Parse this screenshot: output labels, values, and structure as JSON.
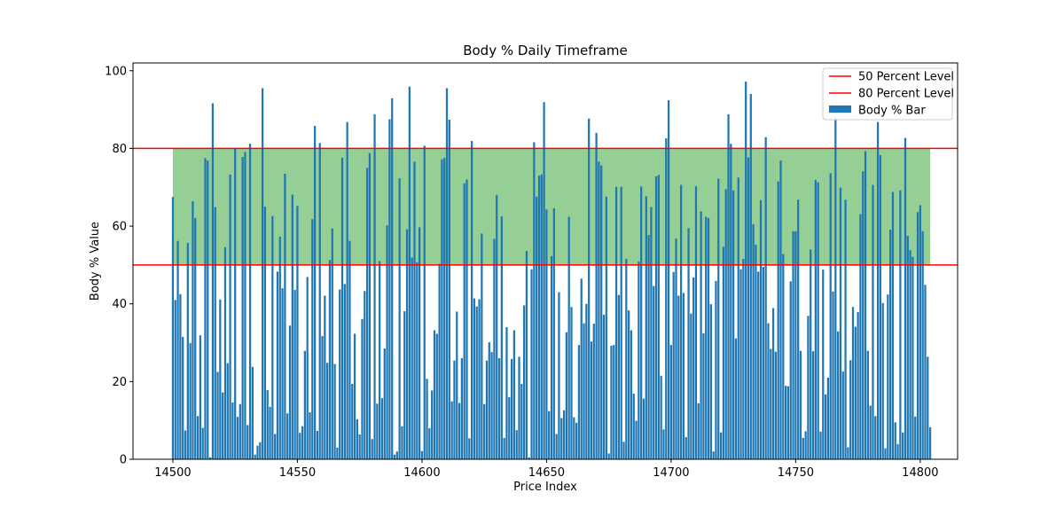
{
  "chart_data": {
    "type": "bar",
    "title": "Body % Daily Timeframe",
    "xlabel": "Price Index",
    "ylabel": "Body % Value",
    "xlim": [
      14484,
      14815
    ],
    "ylim": [
      0,
      102
    ],
    "x_ticks": [
      14500,
      14550,
      14600,
      14650,
      14700,
      14750,
      14800
    ],
    "y_ticks": [
      0,
      20,
      40,
      60,
      80,
      100
    ],
    "bar_color": "#1f77b4",
    "x_start": 14500,
    "values": [
      67.5,
      41.0,
      56.2,
      42.5,
      31.5,
      7.4,
      55.7,
      29.9,
      66.4,
      62.1,
      11.1,
      31.9,
      8.1,
      77.5,
      76.9,
      0.5,
      91.6,
      64.9,
      22.5,
      41.1,
      17.2,
      54.6,
      24.7,
      73.3,
      14.6,
      80.1,
      10.9,
      14.2,
      77.8,
      79.1,
      8.8,
      81.2,
      23.8,
      1.2,
      3.5,
      4.4,
      95.5,
      65.0,
      17.8,
      13.5,
      62.6,
      6.5,
      48.3,
      57.3,
      44.0,
      73.5,
      11.8,
      34.4,
      68.1,
      43.6,
      65.2,
      6.8,
      8.5,
      27.9,
      46.9,
      12.1,
      61.8,
      85.8,
      7.3,
      81.4,
      31.7,
      42.1,
      24.8,
      51.3,
      59.4,
      24.5,
      3.0,
      43.7,
      77.6,
      45.1,
      86.8,
      56.2,
      19.4,
      32.3,
      10.3,
      6.4,
      36.1,
      43.3,
      75.0,
      78.8,
      5.2,
      88.8,
      14.3,
      51.0,
      15.7,
      28.5,
      60.2,
      87.5,
      92.9,
      1.2,
      2.0,
      72.3,
      8.5,
      38.1,
      59.2,
      95.9,
      51.9,
      76.6,
      50.7,
      59.7,
      2.1,
      80.7,
      20.7,
      8.0,
      17.7,
      33.2,
      32.3,
      50.3,
      77.2,
      77.6,
      95.5,
      87.4,
      14.9,
      25.4,
      38.0,
      14.5,
      26.0,
      71.0,
      72.0,
      5.4,
      81.9,
      41.4,
      39.3,
      41.2,
      58.1,
      14.2,
      25.4,
      30.1,
      27.6,
      56.7,
      68.0,
      26.0,
      62.5,
      5.5,
      34.0,
      16.0,
      25.8,
      33.2,
      7.5,
      26.4,
      19.4,
      39.6,
      53.6,
      0.5,
      48.9,
      81.6,
      67.6,
      73.0,
      73.3,
      91.9,
      64.3,
      12.4,
      52.3,
      64.6,
      6.5,
      43.0,
      10.6,
      12.6,
      32.7,
      62.4,
      39.2,
      10.8,
      9.4,
      29.4,
      46.5,
      35.0,
      40.0,
      87.7,
      30.3,
      34.9,
      84.0,
      76.6,
      75.6,
      37.2,
      67.6,
      1.5,
      29.2,
      29.4,
      70.1,
      42.3,
      70.1,
      4.5,
      51.6,
      38.3,
      33.2,
      16.9,
      9.9,
      50.9,
      70.2,
      15.6,
      67.7,
      57.7,
      64.9,
      44.6,
      72.8,
      73.2,
      21.5,
      7.7,
      82.6,
      92.4,
      29.4,
      48.2,
      56.8,
      42.1,
      70.6,
      42.8,
      5.7,
      59.5,
      37.5,
      46.8,
      70.3,
      14.4,
      63.8,
      32.4,
      62.4,
      62.1,
      39.9,
      2.0,
      45.9,
      72.2,
      6.9,
      54.7,
      69.5,
      88.8,
      81.2,
      69.2,
      31.1,
      72.5,
      48.9,
      51.6,
      97.2,
      77.7,
      94.0,
      60.5,
      55.2,
      48.3,
      66.7,
      49.5,
      82.9,
      35.0,
      28.4,
      38.9,
      27.7,
      71.5,
      76.9,
      52.8,
      18.9,
      18.8,
      45.8,
      58.7,
      58.7,
      66.8,
      27.9,
      5.5,
      7.2,
      36.9,
      54.0,
      27.8,
      71.9,
      71.3,
      7.1,
      48.8,
      16.7,
      21.0,
      73.6,
      43.2,
      87.8,
      32.9,
      69.9,
      22.6,
      66.8,
      3.1,
      25.5,
      39.2,
      34.1,
      37.9,
      63.1,
      74.1,
      79.3,
      27.9,
      13.8,
      70.6,
      11.1,
      86.8,
      78.3,
      40.2,
      2.8,
      42.4,
      59.1,
      68.8,
      9.5,
      3.9,
      69.2,
      6.9,
      82.7,
      57.5,
      53.8,
      52.1,
      11.0,
      63.6,
      65.4,
      58.7,
      44.9,
      26.4,
      8.2
    ]
  },
  "shaded_band": {
    "from": 50,
    "to": 80,
    "color": "#2ca02c",
    "opacity": 0.5
  },
  "reference_lines": [
    {
      "label": "50 Percent Level",
      "y": 50,
      "color": "#ff0000"
    },
    {
      "label": "80 Percent Level",
      "y": 80,
      "color": "#ff0000"
    }
  ],
  "legend": {
    "position": "upper right",
    "items": [
      {
        "label": "50 Percent Level",
        "kind": "line",
        "color": "#ff0000"
      },
      {
        "label": "80 Percent Level",
        "kind": "line",
        "color": "#ff0000"
      },
      {
        "label": "Body % Bar",
        "kind": "patch",
        "color": "#1f77b4"
      }
    ]
  }
}
